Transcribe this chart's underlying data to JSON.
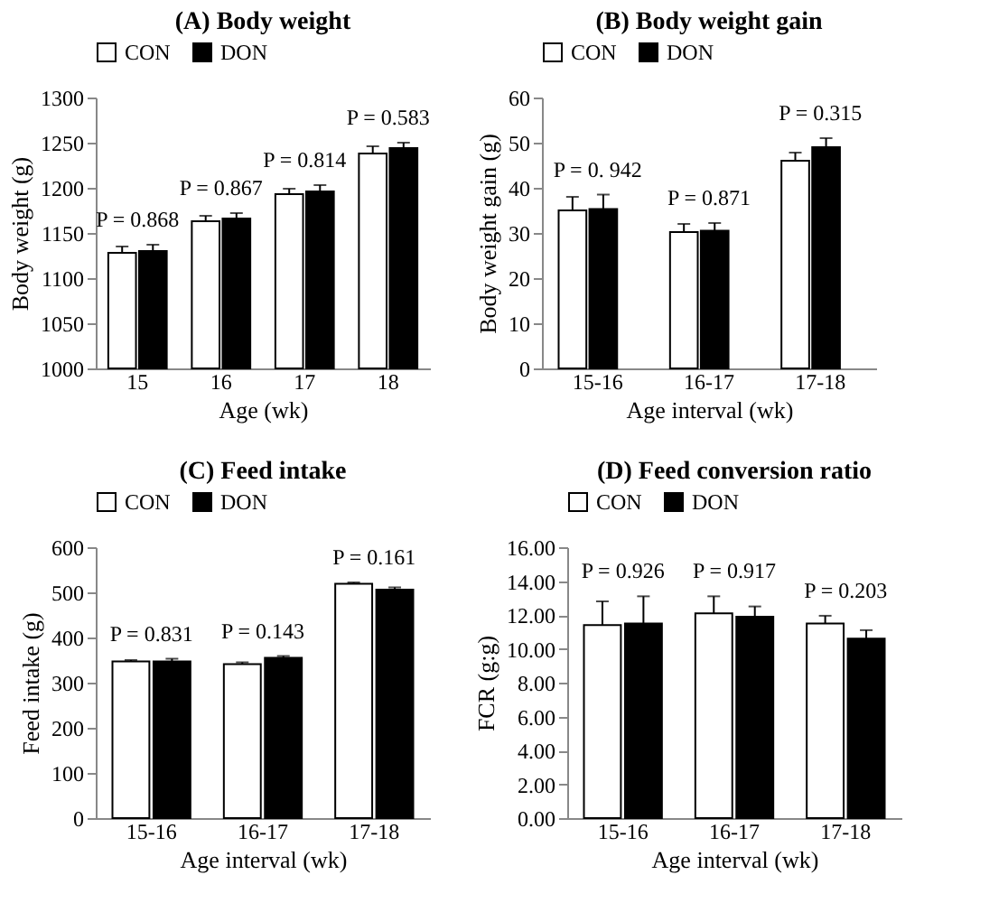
{
  "chart_data": [
    {
      "type": "bar",
      "title": "(A) Body weight",
      "xlabel": "Age (wk)",
      "ylabel": "Body weight (g)",
      "categories": [
        "15",
        "16",
        "17",
        "18"
      ],
      "legend": "top",
      "ylim": [
        1000,
        1300
      ],
      "yticks": [
        1000,
        1050,
        1100,
        1150,
        1200,
        1250,
        1300
      ],
      "series": [
        {
          "name": "CON",
          "color": "#ffffff",
          "values": [
            1128,
            1163,
            1193,
            1238
          ],
          "errors": [
            [
              1128,
              1135
            ],
            [
              1163,
              1169
            ],
            [
              1193,
              1199
            ],
            [
              1238,
              1246
            ]
          ]
        },
        {
          "name": "DON",
          "color": "#000000",
          "values": [
            1130,
            1166,
            1196,
            1244
          ],
          "errors": [
            [
              1130,
              1137
            ],
            [
              1166,
              1172
            ],
            [
              1196,
              1203
            ],
            [
              1244,
              1250
            ]
          ]
        }
      ],
      "annotations": [
        "P = 0.868",
        "P = 0.867",
        "P = 0.814",
        "P = 0.583"
      ]
    },
    {
      "type": "bar",
      "title": "(B) Body weight gain",
      "xlabel": "Age interval (wk)",
      "ylabel": "Body weight gain (g)",
      "categories": [
        "15-16",
        "16-17",
        "17-18"
      ],
      "legend": "top",
      "ylim": [
        0,
        60
      ],
      "yticks": [
        0,
        10,
        20,
        30,
        40,
        50,
        60
      ],
      "series": [
        {
          "name": "CON",
          "color": "#ffffff",
          "values": [
            35,
            30.2,
            46
          ],
          "errors": [
            [
              35,
              38
            ],
            [
              30.2,
              32
            ],
            [
              46,
              47.8
            ]
          ]
        },
        {
          "name": "DON",
          "color": "#000000",
          "values": [
            35.3,
            30.5,
            49
          ],
          "errors": [
            [
              35.3,
              38.5
            ],
            [
              30.5,
              32.2
            ],
            [
              49,
              51
            ]
          ]
        }
      ],
      "annotations": [
        "P = 0. 942",
        "P = 0.871",
        "P = 0.315"
      ]
    },
    {
      "type": "bar",
      "title": "(C) Feed intake",
      "xlabel": "Age interval (wk)",
      "ylabel": "Feed intake (g)",
      "categories": [
        "15-16",
        "16-17",
        "17-18"
      ],
      "legend": "top",
      "ylim": [
        0,
        600
      ],
      "yticks": [
        0,
        100,
        200,
        300,
        400,
        500,
        600
      ],
      "series": [
        {
          "name": "CON",
          "color": "#ffffff",
          "values": [
            347,
            341,
            519
          ],
          "errors": [
            [
              347,
              350
            ],
            [
              341,
              345
            ],
            [
              519,
              522
            ]
          ]
        },
        {
          "name": "DON",
          "color": "#000000",
          "values": [
            347,
            355,
            506
          ],
          "errors": [
            [
              347,
              353
            ],
            [
              355,
              359
            ],
            [
              506,
              511
            ]
          ]
        }
      ],
      "annotations": [
        "P = 0.831",
        "P = 0.143",
        "P = 0.161"
      ]
    },
    {
      "type": "bar",
      "title": "(D) Feed conversion ratio",
      "xlabel": "Age interval (wk)",
      "ylabel": "FCR (g:g)",
      "categories": [
        "15-16",
        "16-17",
        "17-18"
      ],
      "legend": "top",
      "ylim": [
        0,
        16
      ],
      "yticks": [
        {
          "value": 0,
          "label": "0.00"
        },
        {
          "value": 2,
          "label": "2.00"
        },
        {
          "value": 4,
          "label": "4.00"
        },
        {
          "value": 6,
          "label": "6.00"
        },
        {
          "value": 8,
          "label": "8.00"
        },
        {
          "value": 10,
          "label": "10.00"
        },
        {
          "value": 12,
          "label": "12.00"
        },
        {
          "value": 14,
          "label": "14.00"
        },
        {
          "value": 16,
          "label": "16.00"
        }
      ],
      "series": [
        {
          "name": "CON",
          "color": "#ffffff",
          "values": [
            11.4,
            12.1,
            11.5
          ],
          "errors": [
            [
              11.4,
              12.8
            ],
            [
              12.1,
              13.1
            ],
            [
              11.5,
              11.95
            ]
          ]
        },
        {
          "name": "DON",
          "color": "#000000",
          "values": [
            11.5,
            11.9,
            10.6
          ],
          "errors": [
            [
              11.5,
              13.1
            ],
            [
              11.9,
              12.5
            ],
            [
              10.6,
              11.1
            ]
          ]
        }
      ],
      "annotations": [
        "P = 0.926",
        "P = 0.917",
        "P = 0.203"
      ]
    }
  ]
}
